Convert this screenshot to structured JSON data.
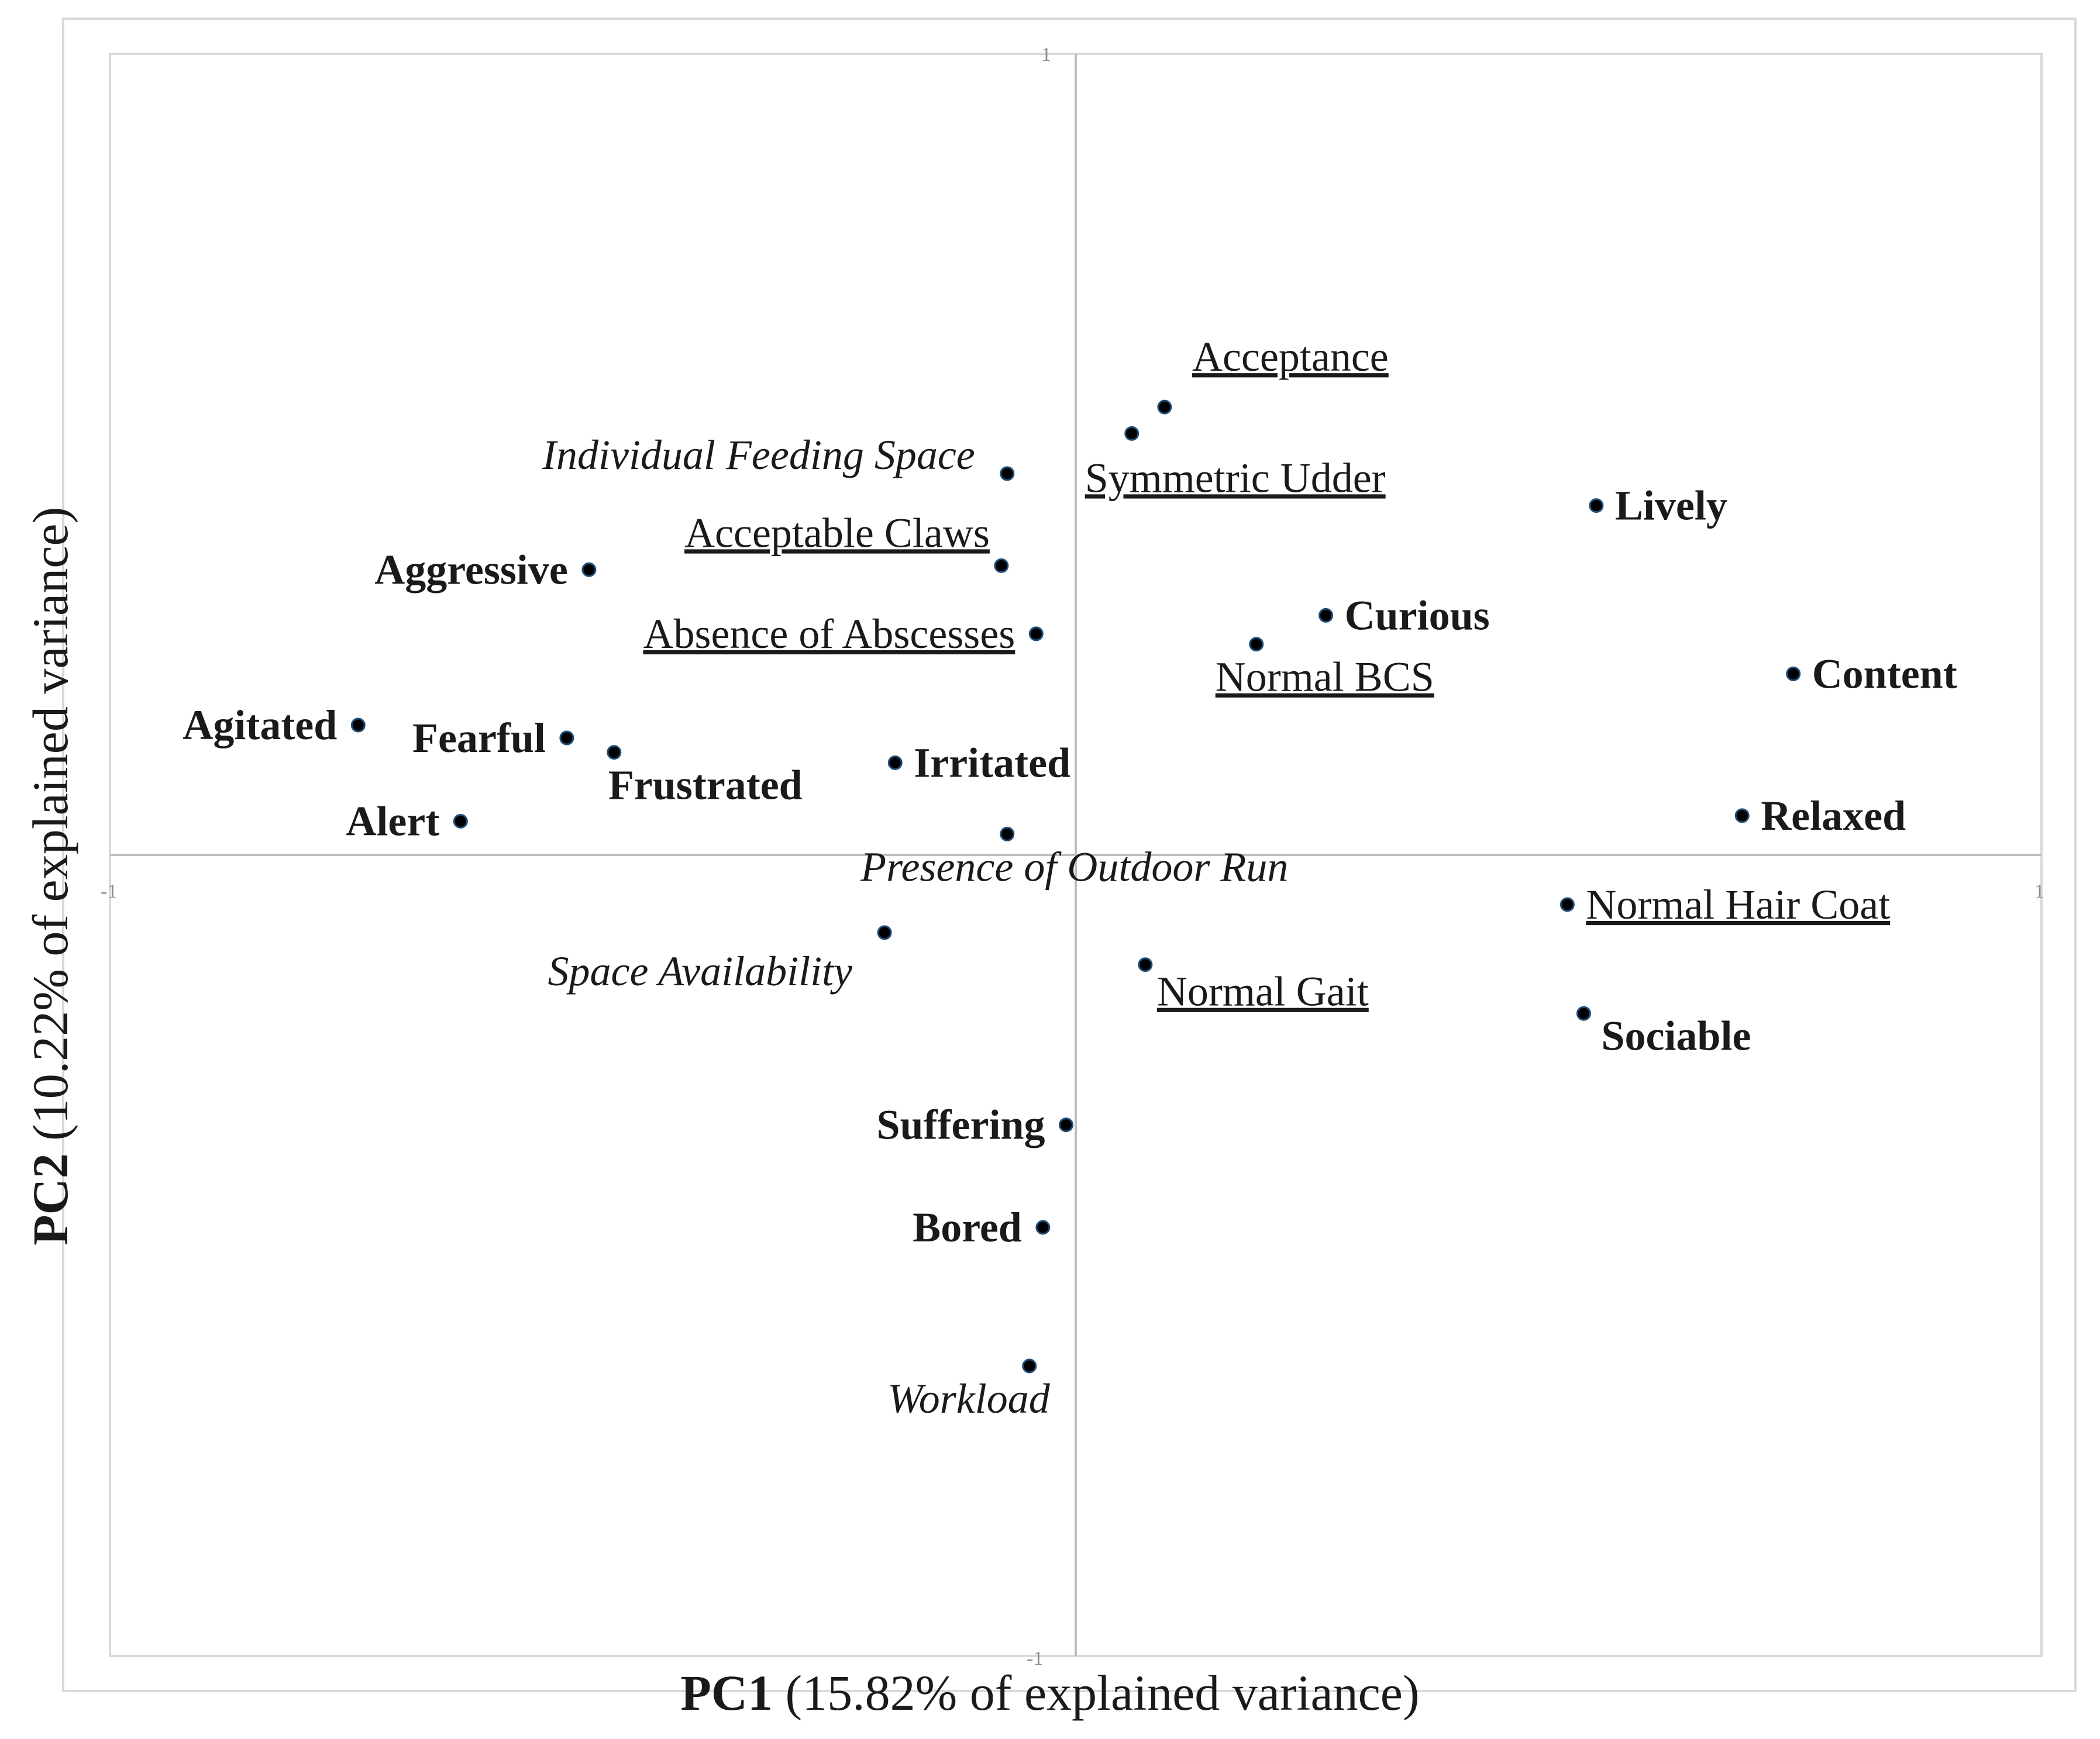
{
  "chart_data": {
    "type": "scatter",
    "title": "",
    "xlabel": {
      "bold": "PC1",
      "rest": " (15.82% of explained variance)"
    },
    "ylabel": {
      "bold": "PC2",
      "rest": " (10.22% of explained variance)"
    },
    "xlim": [
      -1,
      1
    ],
    "ylim": [
      -1,
      1
    ],
    "ticks": {
      "x_min": "-1",
      "x_max": "1",
      "y_min": "-1",
      "y_max": "1"
    },
    "grid": false,
    "legend": "none",
    "colors": {
      "marker": "#000000",
      "marker_edge": "#1f4e79",
      "axis": "#bfbfbf",
      "frame": "#d9d9d9"
    },
    "points": [
      {
        "label": "Acceptance",
        "style": "underline",
        "x": 0.092,
        "y": 0.559,
        "anchor": "above"
      },
      {
        "label": "Symmetric Udder",
        "style": "underline",
        "x": 0.058,
        "y": 0.526,
        "anchor": "below"
      },
      {
        "label": "Individual Feeding Space",
        "style": "italic",
        "x": -0.071,
        "y": 0.476,
        "anchor": "left"
      },
      {
        "label": "Lively",
        "style": "bold",
        "x": 0.539,
        "y": 0.436,
        "anchor": "right"
      },
      {
        "label": "Aggressive",
        "style": "bold",
        "x": -0.504,
        "y": 0.356,
        "anchor": "left"
      },
      {
        "label": "Acceptable Claws",
        "style": "underline",
        "x": -0.077,
        "y": 0.361,
        "anchor": "left-up"
      },
      {
        "label": "Curious",
        "style": "bold",
        "x": 0.259,
        "y": 0.299,
        "anchor": "right"
      },
      {
        "label": "Absence of Abscesses",
        "style": "underline",
        "x": -0.041,
        "y": 0.276,
        "anchor": "left"
      },
      {
        "label": "Normal BCS",
        "style": "underline",
        "x": 0.187,
        "y": 0.263,
        "anchor": "below"
      },
      {
        "label": "Content",
        "style": "bold",
        "x": 0.743,
        "y": 0.226,
        "anchor": "right"
      },
      {
        "label": "Agitated",
        "style": "bold",
        "x": -0.743,
        "y": 0.162,
        "anchor": "left"
      },
      {
        "label": "Fearful",
        "style": "bold",
        "x": -0.527,
        "y": 0.146,
        "anchor": "left"
      },
      {
        "label": "Frustrated",
        "style": "bold",
        "x": -0.478,
        "y": 0.128,
        "anchor": "below"
      },
      {
        "label": "Irritated",
        "style": "bold",
        "x": -0.187,
        "y": 0.115,
        "anchor": "right"
      },
      {
        "label": "Alert",
        "style": "bold",
        "x": -0.637,
        "y": 0.042,
        "anchor": "left"
      },
      {
        "label": "Relaxed",
        "style": "bold",
        "x": 0.69,
        "y": 0.049,
        "anchor": "right"
      },
      {
        "label": "Presence of Outdoor Run",
        "style": "italic",
        "x": -0.071,
        "y": 0.026,
        "anchor": "below"
      },
      {
        "label": "Normal Hair Coat",
        "style": "underline",
        "x": 0.509,
        "y": -0.062,
        "anchor": "right"
      },
      {
        "label": "Space Availability",
        "style": "italic",
        "x": -0.198,
        "y": -0.097,
        "anchor": "below-left"
      },
      {
        "label": "Normal Gait",
        "style": "underline",
        "x": 0.072,
        "y": -0.137,
        "anchor": "below"
      },
      {
        "label": "Sociable",
        "style": "bold",
        "x": 0.526,
        "y": -0.198,
        "anchor": "below"
      },
      {
        "label": "Suffering",
        "style": "bold",
        "x": -0.01,
        "y": -0.337,
        "anchor": "left"
      },
      {
        "label": "Bored",
        "style": "bold",
        "x": -0.034,
        "y": -0.465,
        "anchor": "left"
      },
      {
        "label": "Workload",
        "style": "italic",
        "x": -0.048,
        "y": -0.638,
        "anchor": "below"
      }
    ]
  }
}
